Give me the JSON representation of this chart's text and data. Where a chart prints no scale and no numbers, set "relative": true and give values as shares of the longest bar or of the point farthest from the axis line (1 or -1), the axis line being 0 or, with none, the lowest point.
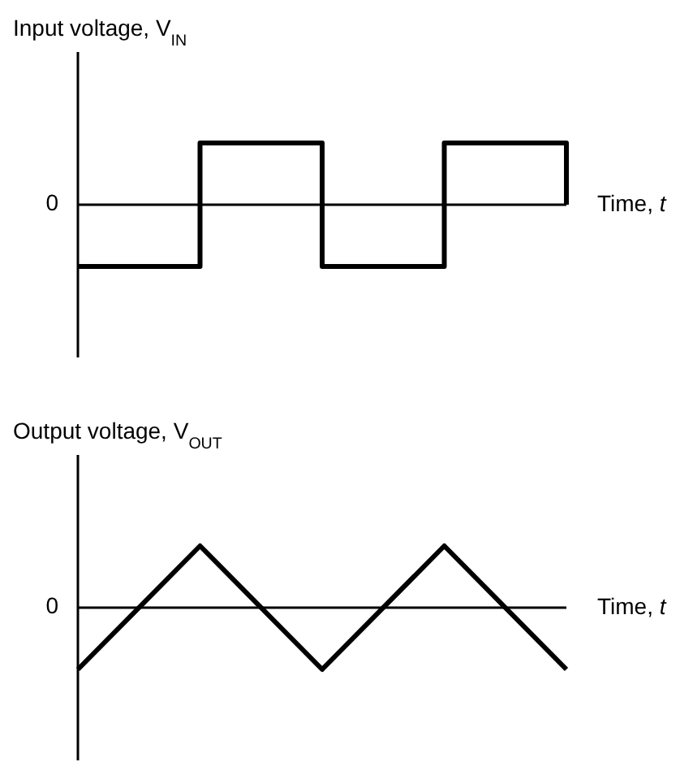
{
  "chart_data": [
    {
      "type": "step",
      "ylabel": "Input voltage, V$_{IN}$",
      "xlabel": "Time, t",
      "relative": true,
      "categories": [
        null,
        null,
        null,
        null,
        null
      ],
      "ref_lines": [
        {
          "axis": "y",
          "value": 0,
          "label": "0"
        }
      ],
      "series": [
        {
          "color": "#000000",
          "values": [
            -1,
            1,
            -1,
            1,
            0
          ]
        }
      ]
    },
    {
      "type": "line",
      "ylabel": "Output voltage, V$_{OUT}$",
      "xlabel": "Time, t",
      "relative": true,
      "categories": [
        null,
        null,
        null,
        null,
        null
      ],
      "ref_lines": [
        {
          "axis": "y",
          "value": 0,
          "label": "0"
        }
      ],
      "series": [
        {
          "color": "#000000",
          "values": [
            -1,
            1,
            -1,
            1,
            -1
          ]
        }
      ]
    }
  ]
}
